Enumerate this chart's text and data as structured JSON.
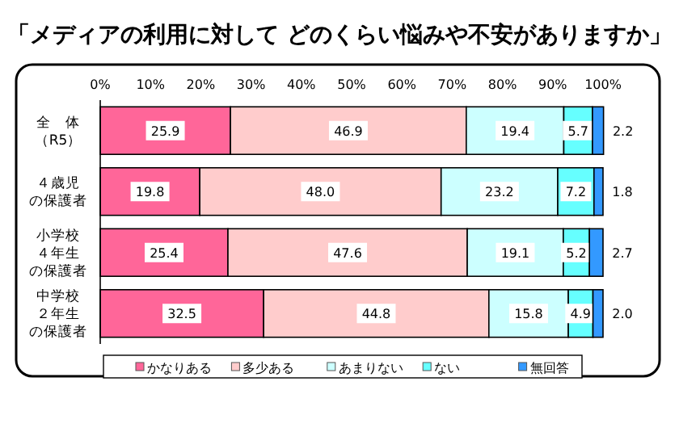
{
  "chart_data": {
    "type": "bar",
    "orientation": "horizontal",
    "stacked": true,
    "title": "「メディアの利用に対して どのくらい悩みや不安がありますか」",
    "categories": [
      "全　体（R5）",
      "４歳児の保護者",
      "小学校４年生の保護者",
      "中学校２年生の保護者"
    ],
    "series": [
      {
        "name": "かなりある",
        "color": "#ff6699",
        "values": [
          25.9,
          19.8,
          25.4,
          32.5
        ],
        "value_labels": [
          "25.9",
          "19.8",
          "25.4",
          "32.5"
        ]
      },
      {
        "name": "多少ある",
        "color": "#ffcccc",
        "values": [
          46.9,
          48.0,
          47.6,
          44.8
        ],
        "value_labels": [
          "46.9",
          "48.0",
          "47.6",
          "44.8"
        ]
      },
      {
        "name": "あまりない",
        "color": "#ccffff",
        "values": [
          19.4,
          23.2,
          19.1,
          15.8
        ],
        "value_labels": [
          "19.4",
          "23.2",
          "19.1",
          "15.8"
        ]
      },
      {
        "name": "ない",
        "color": "#66ffff",
        "values": [
          5.7,
          7.2,
          5.2,
          4.9
        ],
        "value_labels": [
          "5.7",
          "7.2",
          "5.2",
          "4.9"
        ]
      },
      {
        "name": "無回答",
        "color": "#3399ff",
        "values": [
          2.2,
          1.8,
          2.7,
          2.0
        ],
        "value_labels": [
          "2.2",
          "1.8",
          "2.7",
          "2.0"
        ]
      }
    ],
    "xlim": [
      0,
      100
    ],
    "xticks": [
      {
        "value": 0,
        "label": "0%"
      },
      {
        "value": 10,
        "label": "10%"
      },
      {
        "value": 20,
        "label": "20%"
      },
      {
        "value": 30,
        "label": "30%"
      },
      {
        "value": 40,
        "label": "40%"
      },
      {
        "value": 50,
        "label": "50%"
      },
      {
        "value": 60,
        "label": "60%"
      },
      {
        "value": 70,
        "label": "70%"
      },
      {
        "value": 80,
        "label": "80%"
      },
      {
        "value": 90,
        "label": "90%"
      },
      {
        "value": 100,
        "label": "100%"
      }
    ],
    "grid": false,
    "legend": "bottom"
  }
}
